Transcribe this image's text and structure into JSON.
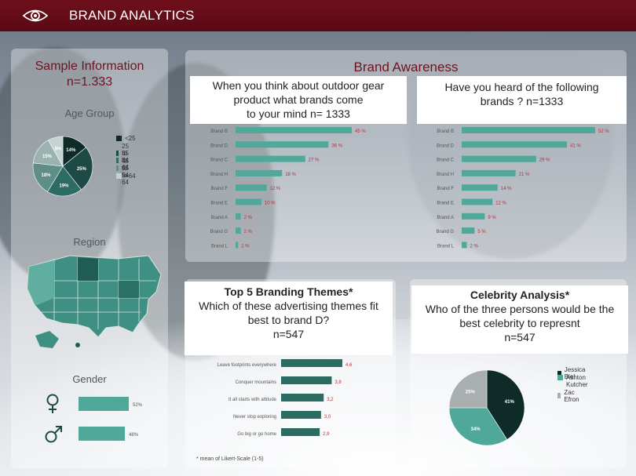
{
  "app": {
    "title": "BRAND ANALYTICS"
  },
  "colors": {
    "brand": "#6e0f1b",
    "teal": "#4fa89a",
    "dark": "#0e2b27",
    "mid": "#2b6b61"
  },
  "sample": {
    "title": "Sample Information",
    "n": "n=1.333",
    "age_title": "Age Group",
    "region_title": "Region",
    "gender_title": "Gender"
  },
  "awareness": {
    "title": "Brand Awareness",
    "q1": [
      "When you think about outdoor gear",
      "product what brands come",
      "to your mind n= 1333"
    ],
    "q2": [
      "Have you heard of the following",
      "brands ? n=1333"
    ]
  },
  "themes": {
    "title": "Top 5 Branding Themes*",
    "question": [
      "Which of these advertising themes fit",
      "best to brand D?",
      "n=547"
    ],
    "footnote": "* mean of Likert-Scale (1-5)"
  },
  "celebrity": {
    "title": "Celebrity Analysis*",
    "question": [
      "Who of the three persons would be the",
      "best celebrity to represnt",
      "n=547"
    ]
  },
  "chart_data": [
    {
      "type": "pie",
      "title": "Age Group",
      "categories": [
        "<25",
        "25 to 34",
        "35 to 44",
        "45 to 54",
        "55 to 64",
        ">64"
      ],
      "labels": [
        "14%",
        "25%",
        "19%",
        "18%",
        "15%",
        "8%"
      ],
      "values": [
        14,
        25,
        19,
        18,
        15,
        8
      ],
      "colors": [
        "#0e2b27",
        "#1d4a44",
        "#2e6b62",
        "#5e8e86",
        "#9ab3ae",
        "#c4d3d0"
      ]
    },
    {
      "type": "bar",
      "title": "When you think about outdoor gear product what brands come to your mind n= 1333",
      "categories": [
        "Brand B",
        "Brand D",
        "Brand C",
        "Brand H",
        "Brand F",
        "Brand E",
        "Brand A",
        "Brand G",
        "Brand L"
      ],
      "values": [
        45,
        36,
        27,
        18,
        12,
        10,
        2,
        2,
        1
      ],
      "labels": [
        "45 %",
        "36 %",
        "27 %",
        "18 %",
        "12 %",
        "10 %",
        "2 %",
        "2 %",
        "1 %"
      ]
    },
    {
      "type": "bar",
      "title": "Have you heard of the following brands ? n=1333",
      "categories": [
        "Brand B",
        "Brand D",
        "Brand C",
        "Brand H",
        "Brand F",
        "Brand E",
        "Brand A",
        "Brand G",
        "Brand L"
      ],
      "values": [
        52,
        41,
        29,
        21,
        14,
        12,
        9,
        5,
        2
      ],
      "labels": [
        "52 %",
        "41 %",
        "29 %",
        "21 %",
        "14 %",
        "12 %",
        "9 %",
        "5 %",
        "2 %"
      ]
    },
    {
      "type": "bar",
      "title": "Gender",
      "categories": [
        "female",
        "male"
      ],
      "values": [
        52,
        48
      ],
      "labels": [
        "52%",
        "48%"
      ]
    },
    {
      "type": "bar",
      "title": "Top 5 Branding Themes*",
      "categories": [
        "Leave footprints everywhere",
        "Conquer mountains",
        "It all starts with attitude",
        "Never stop exploring",
        "Go big or go home"
      ],
      "values": [
        4.6,
        3.8,
        3.2,
        3.0,
        2.9
      ],
      "labels": [
        "4,6",
        "3,8",
        "3,2",
        "3,0",
        "2,9"
      ]
    },
    {
      "type": "pie",
      "title": "Celebrity Analysis*",
      "categories": [
        "Jessica Biel",
        "Ashton Kutcher",
        "Zac Efron"
      ],
      "legend": [
        "Jessica Biel",
        "Ashton",
        "Kutcher",
        "Zac Efron"
      ],
      "values": [
        41,
        34,
        25
      ],
      "labels": [
        "41%",
        "34%",
        "25%"
      ],
      "colors": [
        "#0e2b27",
        "#4fa89a",
        "#a9aeae"
      ]
    }
  ]
}
